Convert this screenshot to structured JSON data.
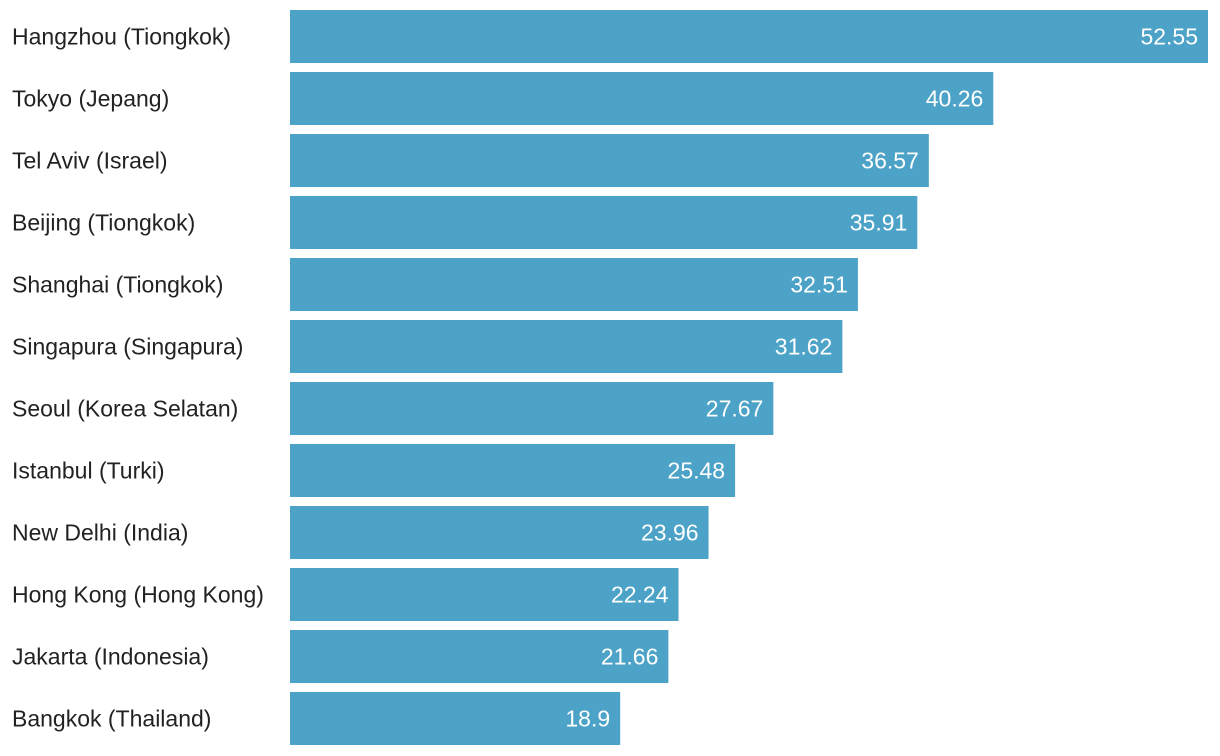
{
  "chart_data": {
    "type": "bar",
    "orientation": "horizontal",
    "categories": [
      "Hangzhou (Tiongkok)",
      "Tokyo (Jepang)",
      "Tel Aviv (Israel)",
      "Beijing (Tiongkok)",
      "Shanghai (Tiongkok)",
      "Singapura (Singapura)",
      "Seoul (Korea Selatan)",
      "Istanbul (Turki)",
      "New Delhi (India)",
      "Hong Kong (Hong Kong)",
      "Jakarta (Indonesia)",
      "Bangkok (Thailand)"
    ],
    "values": [
      52.55,
      40.26,
      36.57,
      35.91,
      32.51,
      31.62,
      27.67,
      25.48,
      23.96,
      22.24,
      21.66,
      18.9
    ],
    "value_labels": [
      "52.55",
      "40.26",
      "36.57",
      "35.91",
      "32.51",
      "31.62",
      "27.67",
      "25.48",
      "23.96",
      "22.24",
      "21.66",
      "18.9"
    ],
    "xlim": [
      0,
      52.55
    ],
    "grid": false,
    "bar_color": "#4ca3c7",
    "value_label_color": "#ffffff",
    "category_label_color": "#222222"
  }
}
